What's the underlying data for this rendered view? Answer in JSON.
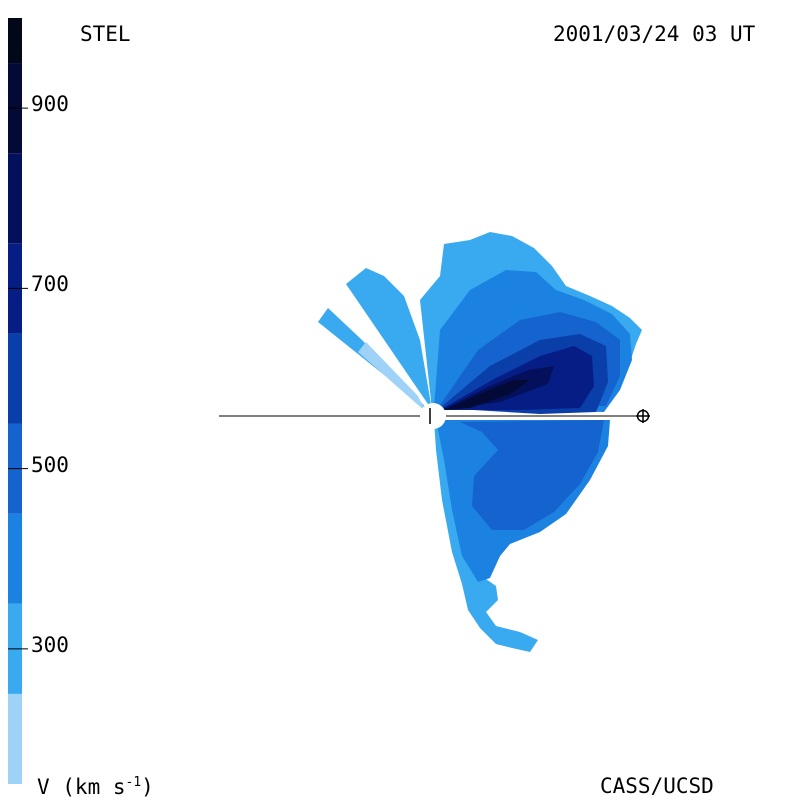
{
  "header": {
    "source_label": "STEL",
    "timestamp": "2001/03/24 03 UT"
  },
  "footer": {
    "credit": "CASS/UCSD"
  },
  "colorbar": {
    "units_prefix": "V (km s",
    "units_exponent": "-1",
    "units_suffix": ")",
    "min": 150,
    "max": 1000,
    "ticks": [
      {
        "value": 300,
        "label": "300"
      },
      {
        "value": 500,
        "label": "500"
      },
      {
        "value": 700,
        "label": "700"
      },
      {
        "value": 900,
        "label": "900"
      }
    ],
    "bands": [
      {
        "from": 150,
        "to": 250,
        "color": "#9ed2f6"
      },
      {
        "from": 250,
        "to": 350,
        "color": "#3aaaf0"
      },
      {
        "from": 350,
        "to": 450,
        "color": "#1c82e2"
      },
      {
        "from": 450,
        "to": 550,
        "color": "#1463cf"
      },
      {
        "from": 550,
        "to": 650,
        "color": "#0a3ea8"
      },
      {
        "from": 650,
        "to": 750,
        "color": "#061d86"
      },
      {
        "from": 750,
        "to": 850,
        "color": "#04105c"
      },
      {
        "from": 850,
        "to": 950,
        "color": "#030a36"
      },
      {
        "from": 950,
        "to": 1000,
        "color": "#020818"
      }
    ]
  },
  "map": {
    "sun_symbol": "sun-disk",
    "earth_symbol": "earth-symbol"
  }
}
